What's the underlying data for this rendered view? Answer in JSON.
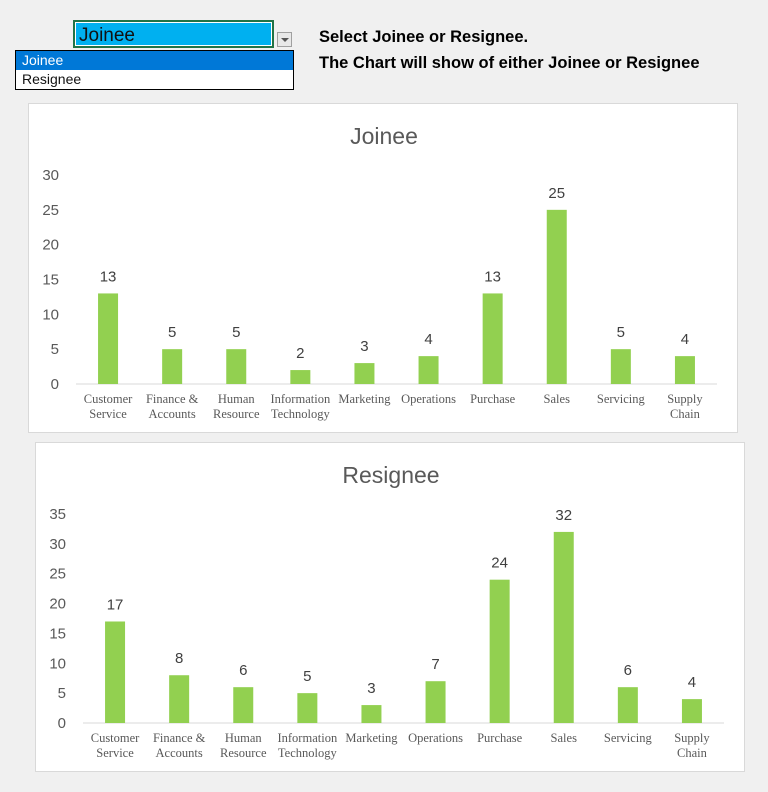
{
  "dropdown": {
    "value": "Joinee",
    "options": [
      "Joinee",
      "Resignee"
    ],
    "selected_index": 0
  },
  "instructions": [
    "Select Joinee or Resignee.",
    "The Chart will show of either Joinee or Resignee"
  ],
  "colors": {
    "bar": "#92d050",
    "selector_bg": "#00b0f0",
    "selected_option": "#0078d7"
  },
  "chart_data": [
    {
      "type": "bar",
      "title": "Joinee",
      "xlabel": "",
      "ylabel": "",
      "ylim": [
        0,
        30
      ],
      "yticks": [
        0,
        5,
        10,
        15,
        20,
        25,
        30
      ],
      "grid": false,
      "categories": [
        [
          "Customer",
          "Service"
        ],
        [
          "Finance &",
          "Accounts"
        ],
        [
          "Human",
          "Resource"
        ],
        [
          "Information",
          "Technology"
        ],
        [
          "Marketing"
        ],
        [
          "Operations"
        ],
        [
          "Purchase"
        ],
        [
          "Sales"
        ],
        [
          "Servicing"
        ],
        [
          "Supply",
          "Chain"
        ]
      ],
      "values": [
        13,
        5,
        5,
        2,
        3,
        4,
        13,
        25,
        5,
        4
      ]
    },
    {
      "type": "bar",
      "title": "Resignee",
      "xlabel": "",
      "ylabel": "",
      "ylim": [
        0,
        35
      ],
      "yticks": [
        0,
        5,
        10,
        15,
        20,
        25,
        30,
        35
      ],
      "grid": false,
      "categories": [
        [
          "Customer",
          "Service"
        ],
        [
          "Finance &",
          "Accounts"
        ],
        [
          "Human",
          "Resource"
        ],
        [
          "Information",
          "Technology"
        ],
        [
          "Marketing"
        ],
        [
          "Operations"
        ],
        [
          "Purchase"
        ],
        [
          "Sales"
        ],
        [
          "Servicing"
        ],
        [
          "Supply",
          "Chain"
        ]
      ],
      "values": [
        17,
        8,
        6,
        5,
        3,
        7,
        24,
        32,
        6,
        4
      ]
    }
  ]
}
